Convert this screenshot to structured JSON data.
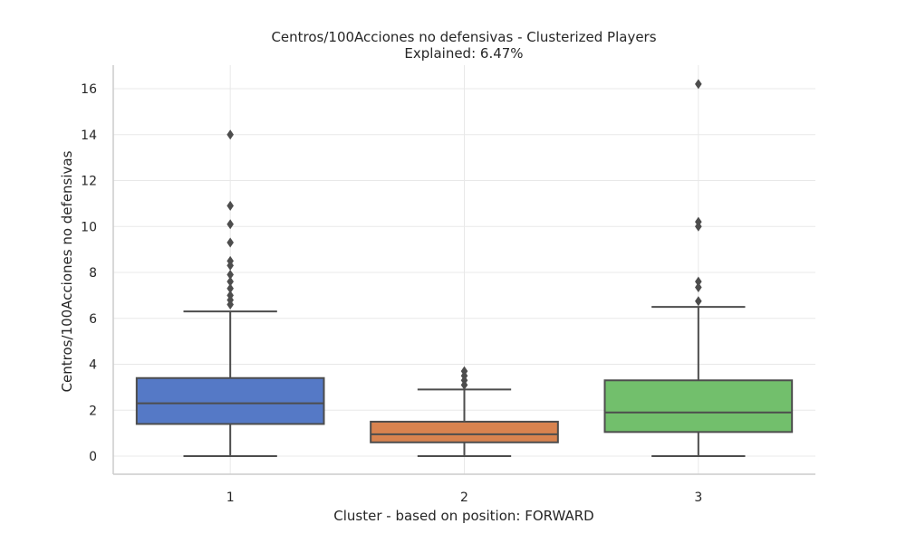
{
  "chart_data": {
    "type": "box",
    "title_line1": "Centros/100Acciones no defensivas - Clusterized Players",
    "title_line2": "Explained: 6.47%",
    "xlabel": "Cluster - based on position: FORWARD",
    "ylabel": "Centros/100Acciones no defensivas",
    "ylim": [
      -0.8,
      17.0
    ],
    "yticks": [
      0,
      2,
      4,
      6,
      8,
      10,
      12,
      14,
      16
    ],
    "categories": [
      "1",
      "2",
      "3"
    ],
    "grid": true,
    "colors": {
      "box": [
        "#5579c6",
        "#d8834f",
        "#72bf6c"
      ],
      "line": "#4d4d4d"
    },
    "boxes": [
      {
        "category": "1",
        "whisker_low": 0.0,
        "q1": 1.4,
        "median": 2.3,
        "q3": 3.4,
        "whisker_high": 6.3,
        "outliers": [
          14.0,
          10.9,
          10.1,
          9.3,
          8.5,
          8.3,
          7.9,
          7.6,
          7.3,
          7.0,
          6.8,
          6.6
        ]
      },
      {
        "category": "2",
        "whisker_low": 0.0,
        "q1": 0.6,
        "median": 0.95,
        "q3": 1.5,
        "whisker_high": 2.9,
        "outliers": [
          3.7,
          3.5,
          3.3,
          3.1
        ]
      },
      {
        "category": "3",
        "whisker_low": 0.0,
        "q1": 1.05,
        "median": 1.9,
        "q3": 3.3,
        "whisker_high": 6.5,
        "outliers": [
          16.2,
          10.2,
          10.0,
          7.6,
          7.35,
          6.75
        ]
      }
    ]
  }
}
